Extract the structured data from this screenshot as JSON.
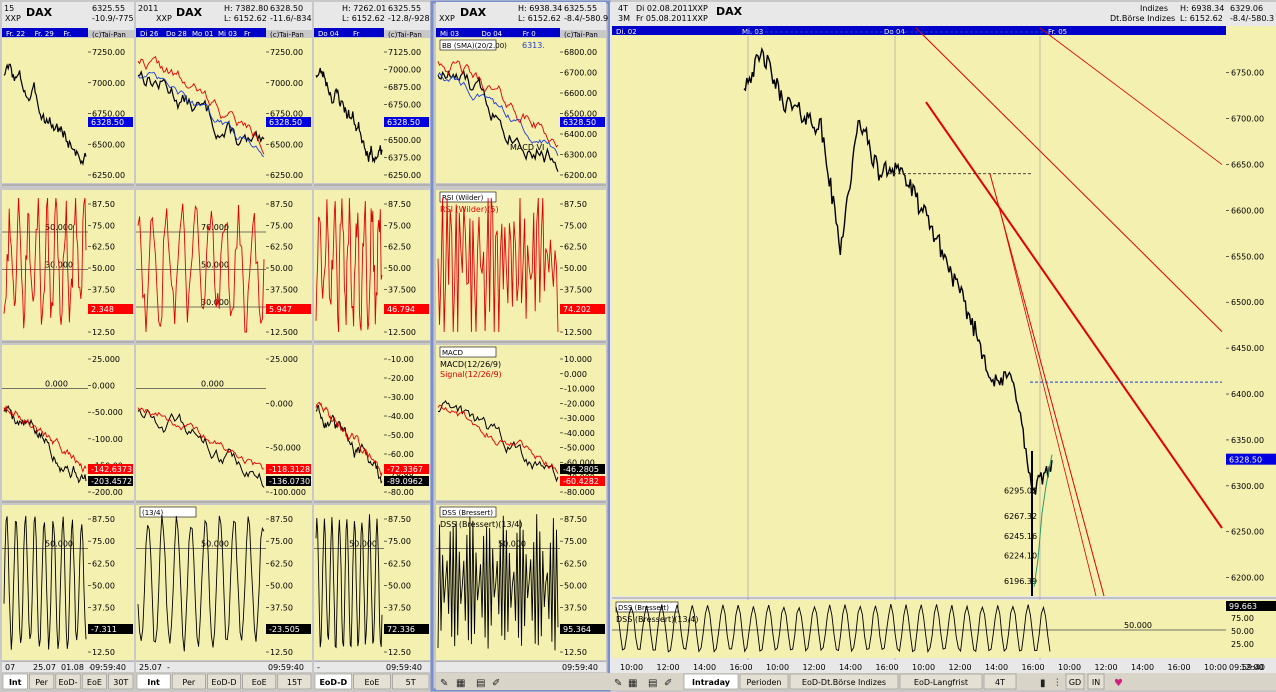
{
  "colors": {
    "panel_bg": "#f4f0b0",
    "price_bar": "#e8e8e8",
    "tab_bar": "#d8d4c8",
    "frame_blue": "#7b8fce",
    "series_black": "#000000",
    "series_red": "#e00000",
    "series_blue": "#1f3fd0",
    "label_blue_bg": "#0000e0",
    "label_red_bg": "#ff0000",
    "label_black_bg": "#000000",
    "level_line": "#4a4a4a",
    "title_blue_bg": "#0000c8"
  },
  "panels": [
    {
      "header": {
        "title": "DAX",
        "sub": "XXP",
        "values": [
          "6325.55",
          "-10.9/-775"
        ],
        "dates": [
          "Fr. 22",
          "Fr. 29",
          "Fr."
        ],
        "corner": "(c)Tai-Pan",
        "left_tag": "15"
      },
      "sections": [
        {
          "ticks": [
            "7250.00",
            "7000.00",
            "6750.00",
            "6500.00",
            "6250.00"
          ],
          "last_labels": [
            {
              "text": "6328.50",
              "style": "blue"
            }
          ]
        },
        {
          "ticks": [
            "87.50",
            "75.00",
            "62.50",
            "50.00",
            "37.50",
            "25.00",
            "12.50"
          ],
          "levels": [
            "50.000",
            "30.000"
          ],
          "last_labels": [
            {
              "text": "2.348",
              "style": "red"
            }
          ]
        },
        {
          "ticks": [
            "25.000",
            "0.000",
            "-50.000",
            "-100.00",
            "-150.00",
            "-200.00"
          ],
          "levels": [
            "0.000"
          ],
          "last_labels": [
            {
              "text": "-142.6373",
              "style": "red"
            },
            {
              "text": "-203.4572",
              "style": "black"
            }
          ]
        },
        {
          "ticks": [
            "87.50",
            "75.00",
            "62.50",
            "50.00",
            "37.50",
            "25.00",
            "12.50"
          ],
          "levels": [
            "50.000"
          ],
          "last_labels": [
            {
              "text": "-7.311",
              "style": "black"
            }
          ]
        }
      ],
      "x_labels": [
        "07",
        "25.07",
        "01.08",
        "-",
        "09:59:40"
      ],
      "tabs": [
        "Int",
        "Per",
        "EoD-",
        "EoE",
        "30T"
      ]
    },
    {
      "header": {
        "title": "DAX",
        "sub": "XXP",
        "values": [
          "H: 7382.80",
          "L: 6152.62",
          "6328.50",
          "-11.6/-834"
        ],
        "dates": [
          "Di 26",
          "Do 28",
          "Mo 01",
          "Mi 03",
          "Fr"
        ],
        "corner": "(c)Tai-Pan",
        "left_tag": "2011",
        "tag2": "6634.831"
      },
      "sections": [
        {
          "ticks": [
            "7250.00",
            "7000.00",
            "6750.00",
            "6500.00",
            "6250.00"
          ],
          "last_labels": [
            {
              "text": "6328.50",
              "style": "blue"
            }
          ]
        },
        {
          "ticks": [
            "87.50",
            "75.00",
            "62.50",
            "50.00",
            "37.500",
            "25.000",
            "12.500"
          ],
          "levels": [
            "70.000",
            "50.000",
            "30.000"
          ],
          "last_labels": [
            {
              "text": "5.947",
              "style": "red"
            }
          ]
        },
        {
          "ticks": [
            "25.000",
            "0.000",
            "-50.000",
            "-100.000"
          ],
          "levels": [
            "0.000"
          ],
          "last_labels": [
            {
              "text": "-118.3128",
              "style": "red"
            },
            {
              "text": "-136.0730",
              "style": "black"
            }
          ]
        },
        {
          "ticks": [
            "87.50",
            "75.00",
            "62.50",
            "50.00",
            "37.50",
            "25.00",
            "12.50"
          ],
          "levels": [
            "50.000"
          ],
          "last_labels": [
            {
              "text": "-23.505",
              "style": "black"
            }
          ],
          "title_tag": "(13/4)"
        }
      ],
      "x_labels": [
        "25.07",
        "-",
        "09:59:40"
      ],
      "tabs": [
        "Int",
        "Per",
        "EoD-D",
        "EoE",
        "15T"
      ]
    },
    {
      "header": {
        "title": "",
        "sub": "",
        "values": [
          "H: 7262.01",
          "L: 6152.62",
          "6325.55",
          "-12.8/-928"
        ],
        "dates": [
          "Do 04",
          "Fr"
        ],
        "corner": "(c)Tai-Pan",
        "left_tag": ""
      },
      "sections": [
        {
          "ticks": [
            "7125.00",
            "7000.00",
            "6875.00",
            "6750.00",
            "6625.00",
            "6500.00",
            "6375.00",
            "6250.00"
          ],
          "last_labels": [
            {
              "text": "6328.50",
              "style": "blue"
            }
          ]
        },
        {
          "ticks": [
            "87.50",
            "75.00",
            "62.50",
            "50.00",
            "37.500",
            "25.000",
            "12.500"
          ],
          "levels": [],
          "last_labels": [
            {
              "text": "46.794",
              "style": "red"
            }
          ]
        },
        {
          "ticks": [
            "-10.00",
            "-20.00",
            "-30.00",
            "-40.00",
            "-50.00",
            "-60.00",
            "-70.00",
            "-80.00"
          ],
          "levels": [],
          "last_labels": [
            {
              "text": "-72.3367",
              "style": "red"
            },
            {
              "text": "-89.0962",
              "style": "black"
            }
          ]
        },
        {
          "ticks": [
            "87.50",
            "75.00",
            "62.50",
            "50.00",
            "37.50",
            "25.00",
            "12.50"
          ],
          "levels": [
            "50.000"
          ],
          "last_labels": [
            {
              "text": "72.336",
              "style": "black"
            }
          ]
        }
      ],
      "x_labels": [
        "-",
        "09:59:40"
      ],
      "tabs": [
        "EoD-D",
        "EoE",
        "5T"
      ]
    },
    {
      "header": {
        "title": "DAX",
        "sub": "XXP",
        "values": [
          "H: 6938.34",
          "L: 6152.62",
          "6325.55",
          "-8.4/-580.9"
        ],
        "dates": [
          "Mi 03",
          "Do 04",
          "Fr 0"
        ],
        "corner": "(c)Tai-Pan",
        "left_tag": ""
      },
      "sections": [
        {
          "ticks": [
            "6800.00",
            "6700.00",
            "6600.00",
            "6500.00",
            "6400.00",
            "6300.00",
            "6200.00"
          ],
          "title_tag": "BB (SMA)(20/2.00)",
          "title_tag_value": "6313.",
          "overlay_text": "MACD VI",
          "last_labels": [
            {
              "text": "6328.50",
              "style": "blue"
            }
          ]
        },
        {
          "ticks": [
            "87.50",
            "75.00",
            "62.50",
            "50.00",
            "37.500",
            "25.000",
            "12.500"
          ],
          "title_tag": "RSI (Wilder)",
          "subtitle": "RSI (Wilder)(5)",
          "levels": [],
          "last_labels": [
            {
              "text": "74.202",
              "style": "red"
            }
          ]
        },
        {
          "ticks": [
            "10.000",
            "0.000",
            "-10.000",
            "-20.000",
            "-30.000",
            "-40.000",
            "-50.000",
            "-60.000",
            "-70.000",
            "-80.000"
          ],
          "title_tag": "MACD",
          "subtitle": "MACD(12/26/9)",
          "subtitle2": "Signal(12/26/9)",
          "levels": [],
          "last_labels": [
            {
              "text": "-46.2805",
              "style": "black"
            },
            {
              "text": "-60.4282",
              "style": "red"
            }
          ]
        },
        {
          "ticks": [
            "87.50",
            "75.00",
            "62.50",
            "50.00",
            "37.50",
            "25.00",
            "12.50"
          ],
          "title_tag": "DSS (Bressert)",
          "subtitle": "DSS (Bressert)(13/4)",
          "levels": [
            "50.000"
          ],
          "last_labels": [
            {
              "text": "95.364",
              "style": "black"
            }
          ]
        }
      ],
      "x_labels": [
        "09:59:40"
      ],
      "tabs": [
        "Int",
        "Per",
        "EoE"
      ]
    }
  ],
  "main_chart": {
    "header": {
      "period": "4T",
      "period2": "3M",
      "from": "Di 02.08.2011",
      "to": "Fr 05.08.2011",
      "title": "DAX",
      "sub": "XXP",
      "category": "Indizes",
      "exchange": "Dt.Börse Indizes",
      "high": "H: 6938.34",
      "low": "L: 6152.62",
      "last": "6329.06",
      "change": "-8.4/-580.3",
      "corner": "(c)Tai-Pan"
    },
    "date_tags": [
      "Di. 02",
      "Mi. 03",
      "Do 04",
      "Fr. 05"
    ],
    "price_ticks": [
      "6750.00",
      "6700.00",
      "6650.00",
      "6600.00",
      "6550.00",
      "6500.00",
      "6450.00",
      "6400.00",
      "6350.00",
      "6300.00",
      "6250.00",
      "6200.00"
    ],
    "last_label": "6328.50",
    "inner_levels": [
      "6295.02",
      "6267.32",
      "6245.16",
      "6224.10",
      "6196.39"
    ],
    "dss": {
      "title_tag": "DSS (Bressert)",
      "subtitle": "DSS (Bressert)(13/4)",
      "level": "50.000",
      "ticks": [
        "75.00",
        "50.00",
        "25.00"
      ],
      "last_label": "99.663"
    },
    "x_labels": [
      "10:00",
      "12:00",
      "14:00",
      "16:00",
      "10:00",
      "12:00",
      "14:00",
      "16:00",
      "10:00",
      "12:00",
      "14:00",
      "16:00",
      "10:00",
      "12:00",
      "14:00",
      "16:00",
      "10:00",
      "12:00",
      "14:00",
      "16:00",
      "18:00",
      "09:59:40"
    ],
    "tabs": [
      "Intraday",
      "Perioden",
      "EoD-Dt.Börse Indizes",
      "EoD-Langfrist",
      "4T",
      "GD",
      "IN"
    ]
  },
  "chart_data": {
    "type": "line",
    "title": "DAX",
    "x": [
      "10:00",
      "12:00",
      "14:00",
      "16:00",
      "10:00",
      "12:00",
      "14:00",
      "16:00",
      "10:00",
      "12:00",
      "14:00",
      "16:00",
      "10:00",
      "12:00",
      "14:00",
      "16:00",
      "10:00"
    ],
    "series": [
      {
        "values": [
          6738,
          6770,
          6720,
          6705,
          6690,
          6560,
          6700,
          6640,
          6650,
          6610,
          6570,
          6520,
          6470,
          6410,
          6420,
          6290,
          6328
        ]
      }
    ],
    "ylim": [
      6180,
      6790
    ],
    "ylabel": "",
    "xlabel": ""
  }
}
